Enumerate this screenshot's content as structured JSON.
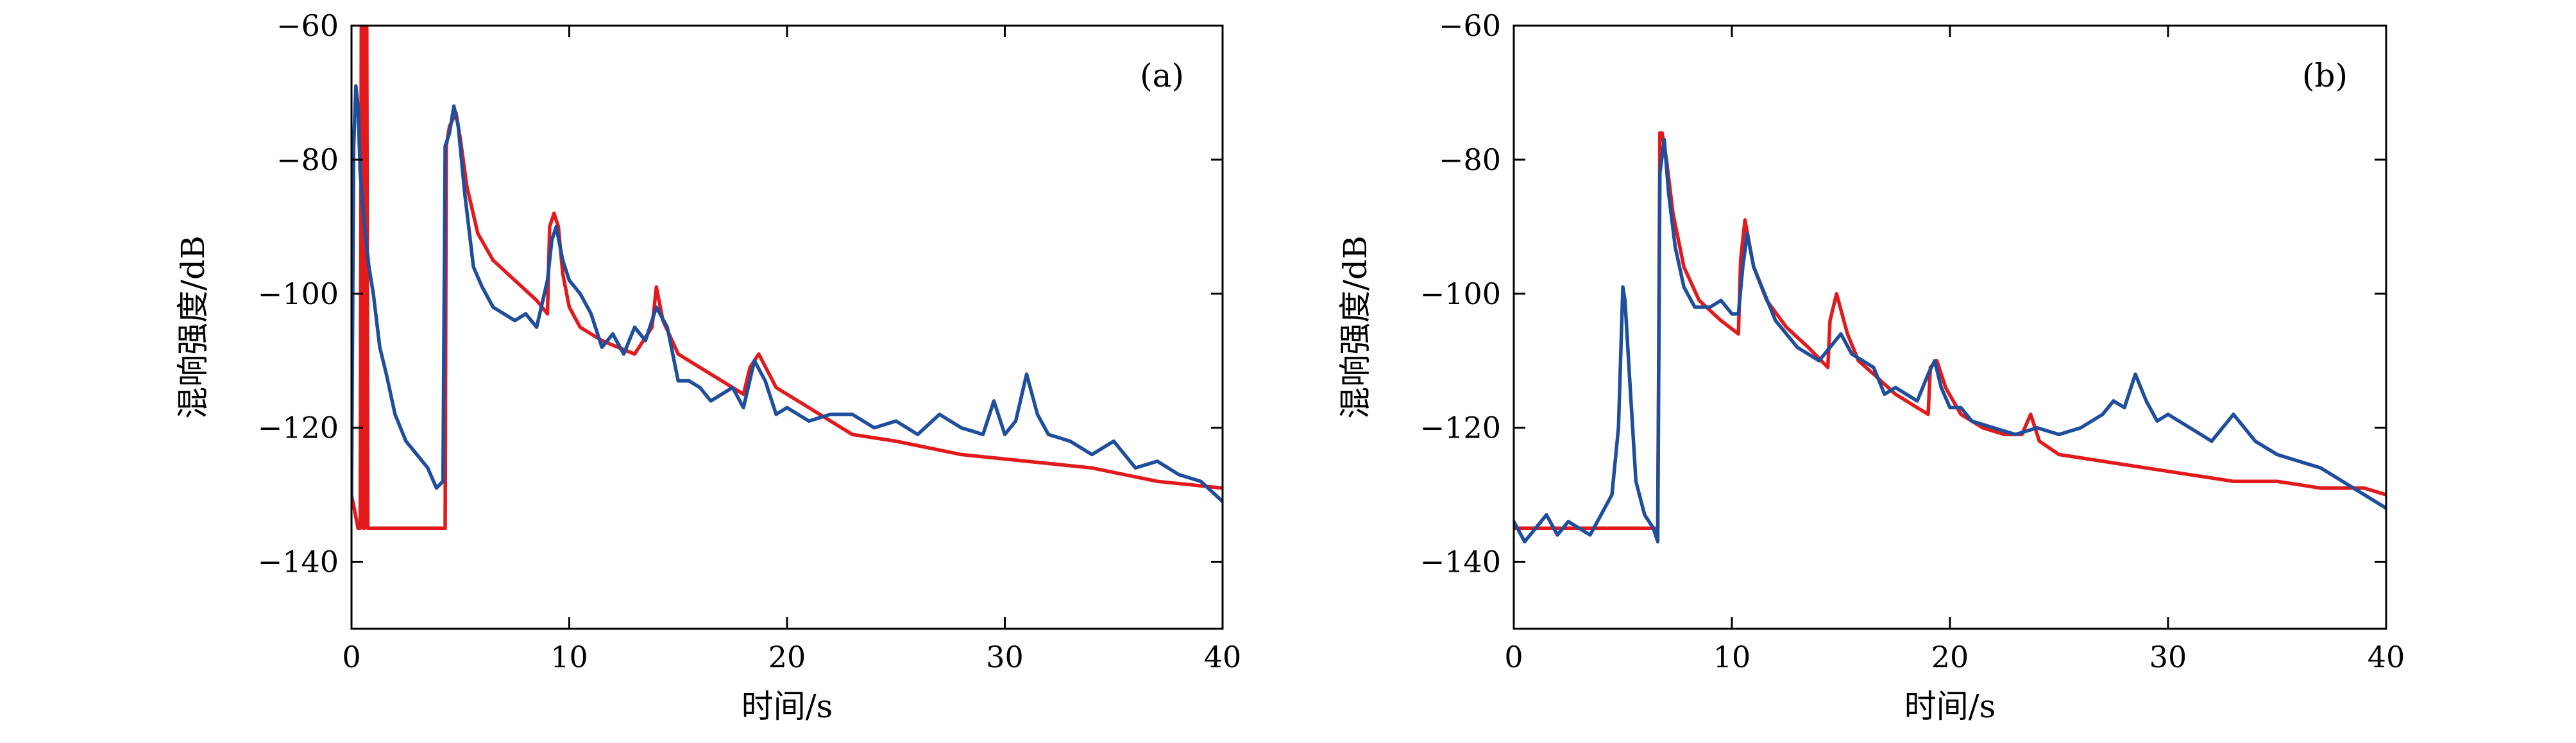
{
  "chart_data": [
    {
      "type": "line",
      "panel_label": "(a)",
      "xlabel": "时间/s",
      "ylabel": "混响强度/dB",
      "xlim": [
        0,
        40
      ],
      "ylim": [
        -150,
        -60
      ],
      "xticks": [
        0,
        10,
        20,
        30,
        40
      ],
      "yticks": [
        -140,
        -120,
        -100,
        -80,
        -60
      ],
      "series": [
        {
          "color": "#e31a1c",
          "x": [
            0,
            0.3,
            0.4,
            0.45,
            0.5,
            0.55,
            0.6,
            0.65,
            0.7,
            0.75,
            4.3,
            4.35,
            4.5,
            4.8,
            5.0,
            5.3,
            5.8,
            6.5,
            7.5,
            8.5,
            9.0,
            9.1,
            9.3,
            9.5,
            9.7,
            10.0,
            10.5,
            11.5,
            13.0,
            13.8,
            14.0,
            14.3,
            15.0,
            16.5,
            18.0,
            18.3,
            18.7,
            19.5,
            21.0,
            23.0,
            25.0,
            28.0,
            31.0,
            34.0,
            37.0,
            40.0
          ],
          "y": [
            -130,
            -135,
            -135,
            -60,
            -60,
            -135,
            -135,
            -60,
            -60,
            -135,
            -135,
            -78,
            -75,
            -73,
            -77,
            -84,
            -91,
            -95,
            -98,
            -101,
            -103,
            -90,
            -88,
            -90,
            -97,
            -102,
            -105,
            -107,
            -109,
            -105,
            -99,
            -104,
            -109,
            -112,
            -115,
            -111,
            -109,
            -114,
            -117,
            -121,
            -122,
            -124,
            -125,
            -126,
            -128,
            -129
          ]
        },
        {
          "color": "#1f4e9c",
          "x": [
            0,
            0.1,
            0.2,
            0.3,
            0.4,
            0.6,
            0.8,
            1.0,
            1.3,
            1.6,
            2.0,
            2.5,
            3.0,
            3.5,
            3.9,
            4.2,
            4.3,
            4.5,
            4.7,
            4.9,
            5.2,
            5.6,
            6.0,
            6.5,
            7.0,
            7.5,
            8.0,
            8.5,
            9.0,
            9.2,
            9.4,
            9.7,
            10.0,
            10.5,
            11.0,
            11.5,
            12.0,
            12.5,
            13.0,
            13.5,
            14.0,
            14.5,
            15.0,
            15.5,
            16.0,
            16.5,
            17.0,
            17.5,
            18.0,
            18.5,
            19.0,
            19.5,
            20.0,
            21.0,
            22.0,
            23.0,
            24.0,
            25.0,
            26.0,
            27.0,
            28.0,
            29.0,
            29.5,
            30.0,
            30.5,
            31.0,
            31.5,
            32.0,
            33.0,
            34.0,
            35.0,
            36.0,
            37.0,
            38.0,
            39.0,
            40.0
          ],
          "y": [
            -131,
            -78,
            -69,
            -72,
            -82,
            -90,
            -96,
            -100,
            -108,
            -112,
            -118,
            -122,
            -124,
            -126,
            -129,
            -128,
            -78,
            -76,
            -72,
            -75,
            -85,
            -96,
            -99,
            -102,
            -103,
            -104,
            -103,
            -105,
            -98,
            -92,
            -90,
            -95,
            -98,
            -100,
            -103,
            -108,
            -106,
            -109,
            -105,
            -107,
            -102,
            -105,
            -113,
            -113,
            -114,
            -116,
            -115,
            -114,
            -117,
            -110,
            -113,
            -118,
            -117,
            -119,
            -118,
            -118,
            -120,
            -119,
            -121,
            -118,
            -120,
            -121,
            -116,
            -121,
            -119,
            -112,
            -118,
            -121,
            -122,
            -124,
            -122,
            -126,
            -125,
            -127,
            -128,
            -131
          ]
        }
      ]
    },
    {
      "type": "line",
      "panel_label": "(b)",
      "xlabel": "时间/s",
      "ylabel": "混响强度/dB",
      "xlim": [
        0,
        40
      ],
      "ylim": [
        -150,
        -60
      ],
      "xticks": [
        0,
        10,
        20,
        30,
        40
      ],
      "yticks": [
        -140,
        -120,
        -100,
        -80,
        -60
      ],
      "series": [
        {
          "color": "#e31a1c",
          "x": [
            0,
            6.6,
            6.7,
            6.8,
            7.0,
            7.3,
            7.8,
            8.5,
            9.5,
            10.3,
            10.4,
            10.6,
            11.0,
            11.6,
            12.5,
            13.5,
            14.4,
            14.5,
            14.8,
            15.3,
            15.8,
            16.5,
            17.5,
            18.5,
            19.0,
            19.1,
            19.4,
            19.8,
            20.5,
            21.5,
            22.5,
            23.3,
            23.7,
            24.1,
            25.0,
            27.0,
            29.0,
            31.0,
            33.0,
            35.0,
            37.0,
            39.0,
            40.0
          ],
          "y": [
            -135,
            -135,
            -76,
            -76,
            -80,
            -88,
            -96,
            -101,
            -104,
            -106,
            -95,
            -89,
            -96,
            -101,
            -105,
            -108,
            -111,
            -104,
            -100,
            -106,
            -110,
            -112,
            -115,
            -117,
            -118,
            -111,
            -110,
            -114,
            -118,
            -120,
            -121,
            -121,
            -118,
            -122,
            -124,
            -125,
            -126,
            -127,
            -128,
            -128,
            -129,
            -129,
            -130
          ]
        },
        {
          "color": "#1f4e9c",
          "x": [
            0,
            0.5,
            1.0,
            1.5,
            2.0,
            2.5,
            3.0,
            3.5,
            4.0,
            4.5,
            4.8,
            5.0,
            5.1,
            5.3,
            5.6,
            6.0,
            6.4,
            6.6,
            6.7,
            6.9,
            7.1,
            7.4,
            7.8,
            8.3,
            9.0,
            9.5,
            10.0,
            10.3,
            10.5,
            10.7,
            11.0,
            11.5,
            12.0,
            12.5,
            13.0,
            13.5,
            14.0,
            14.5,
            15.0,
            15.5,
            16.0,
            16.5,
            17.0,
            17.5,
            18.0,
            18.5,
            19.0,
            19.3,
            19.6,
            20.0,
            20.5,
            21.0,
            22.0,
            23.0,
            24.0,
            25.0,
            26.0,
            27.0,
            27.5,
            28.0,
            28.5,
            29.0,
            29.5,
            30.0,
            31.0,
            32.0,
            32.5,
            33.0,
            34.0,
            35.0,
            36.0,
            37.0,
            38.0,
            39.0,
            40.0
          ],
          "y": [
            -134,
            -137,
            -135,
            -133,
            -136,
            -134,
            -135,
            -136,
            -133,
            -130,
            -120,
            -99,
            -101,
            -112,
            -128,
            -133,
            -135,
            -137,
            -82,
            -77,
            -85,
            -93,
            -99,
            -102,
            -102,
            -101,
            -103,
            -103,
            -96,
            -91,
            -96,
            -100,
            -104,
            -106,
            -108,
            -109,
            -110,
            -108,
            -106,
            -109,
            -110,
            -111,
            -115,
            -114,
            -115,
            -116,
            -112,
            -110,
            -114,
            -117,
            -117,
            -119,
            -120,
            -121,
            -120,
            -121,
            -120,
            -118,
            -116,
            -117,
            -112,
            -116,
            -119,
            -118,
            -120,
            -122,
            -120,
            -118,
            -122,
            -124,
            -125,
            -126,
            -128,
            -130,
            -132
          ]
        }
      ]
    }
  ]
}
